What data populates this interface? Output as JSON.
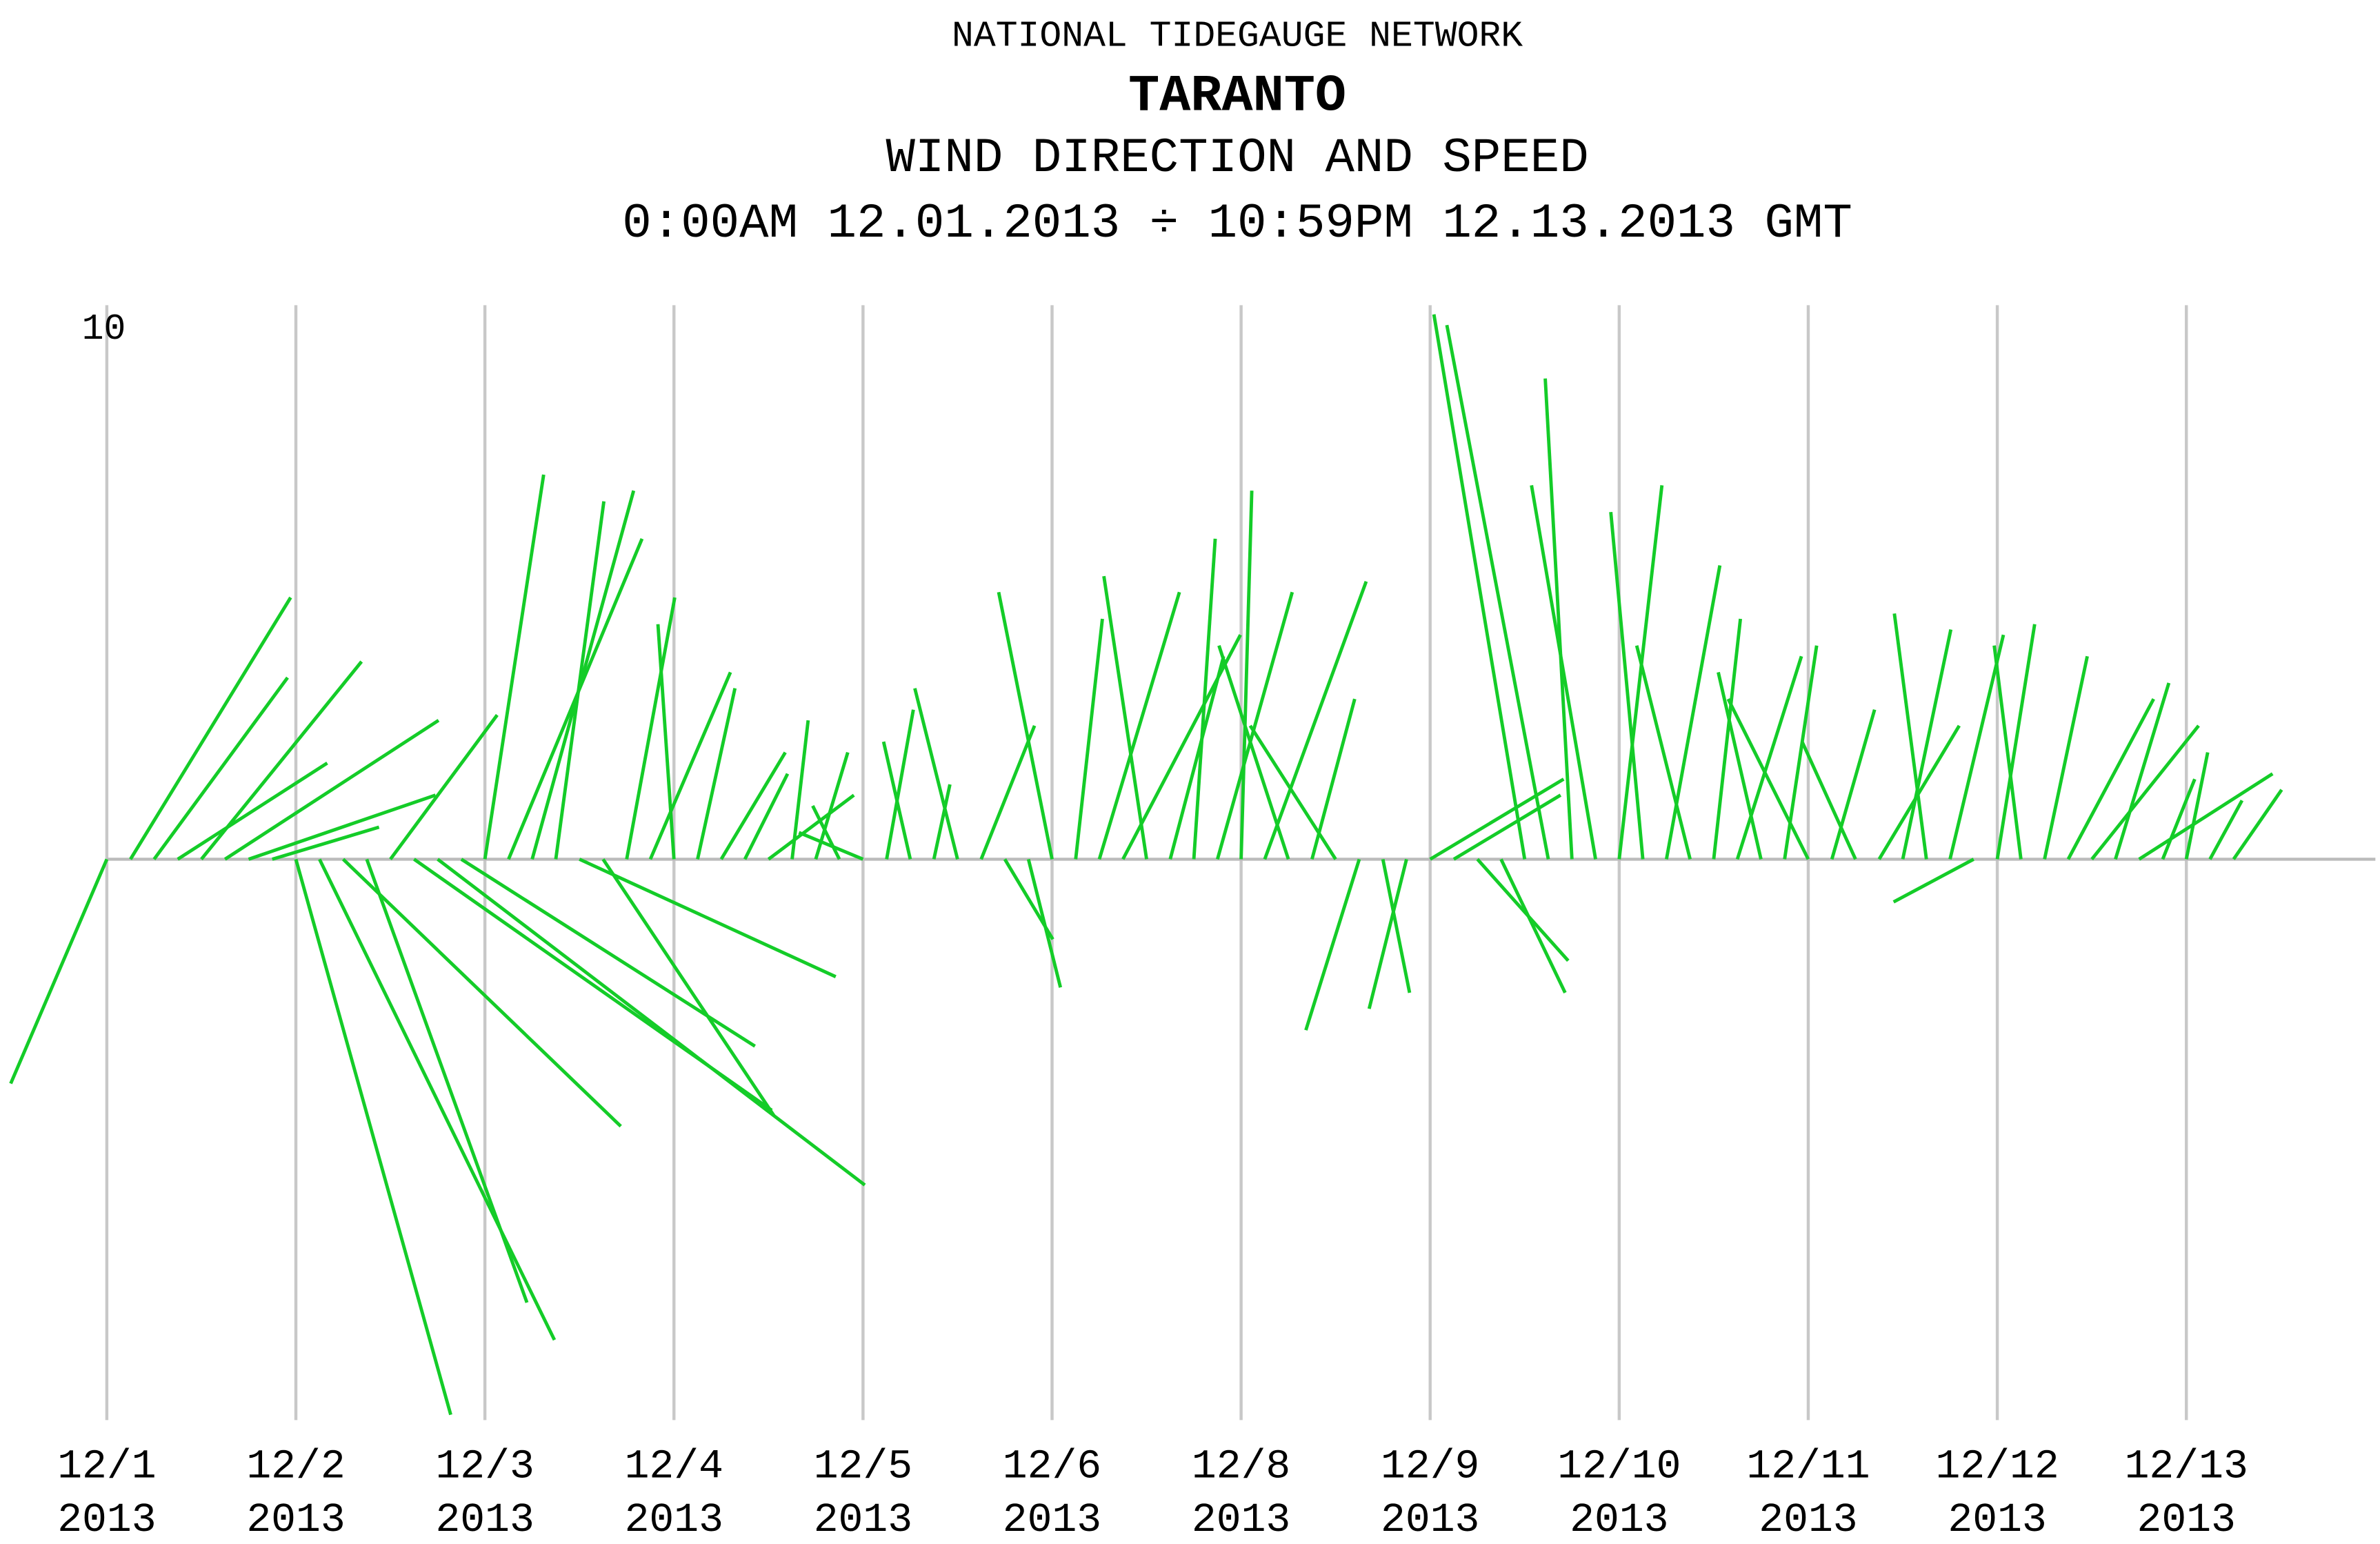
{
  "chart_data": {
    "type": "stick",
    "header": "NATIONAL TIDEGAUGE NETWORK",
    "title": "TARANTO",
    "subtitle": "WIND DIRECTION AND SPEED",
    "period": "0:00AM 12.01.2013 ÷ 10:59PM 12.13.2013 GMT",
    "xlim": [
      0,
      12
    ],
    "xticks": [
      {
        "value": 0,
        "label": "12/1\n2013"
      },
      {
        "value": 1,
        "label": "12/2\n2013"
      },
      {
        "value": 2,
        "label": "12/3\n2013"
      },
      {
        "value": 3,
        "label": "12/4\n2013"
      },
      {
        "value": 4,
        "label": "12/5\n2013"
      },
      {
        "value": 5,
        "label": "12/6\n2013"
      },
      {
        "value": 6,
        "label": "12/8\n2013"
      },
      {
        "value": 7,
        "label": "12/9\n2013"
      },
      {
        "value": 8,
        "label": "12/10\n2013"
      },
      {
        "value": 9,
        "label": "12/11\n2013"
      },
      {
        "value": 10,
        "label": "12/12\n2013"
      },
      {
        "value": 11,
        "label": "12/13\n2013"
      }
    ],
    "ylim": [
      -10.5,
      10
    ],
    "yticks": [
      10
    ],
    "grid": true,
    "x": [
      0,
      0.125,
      0.25,
      0.375,
      0.5,
      0.625,
      0.75,
      0.875,
      1,
      1.125,
      1.25,
      1.375,
      1.5,
      1.625,
      1.75,
      1.875,
      2,
      2.125,
      2.25,
      2.375,
      2.5,
      2.625,
      2.75,
      2.875,
      3,
      3.125,
      3.25,
      3.375,
      3.5,
      3.625,
      3.75,
      3.875,
      4,
      4.125,
      4.25,
      4.375,
      4.5,
      4.625,
      4.75,
      4.875,
      5,
      5.125,
      5.25,
      5.375,
      5.5,
      5.625,
      5.75,
      5.875,
      6,
      6.125,
      6.25,
      6.375,
      6.5,
      6.625,
      6.75,
      6.875,
      7,
      7.125,
      7.25,
      7.375,
      7.5,
      7.625,
      7.75,
      7.875,
      8,
      8.125,
      8.25,
      8.375,
      8.5,
      8.625,
      8.75,
      8.875,
      9,
      9.125,
      9.25,
      9.375,
      9.5,
      9.625,
      9.75,
      9.875,
      10,
      10.125,
      10.25,
      10.375,
      10.5,
      10.625,
      10.75,
      10.875,
      11,
      11.125,
      11.25
    ],
    "series": [
      {
        "color": "#14cc28",
        "u": [
          -1.8,
          3.0,
          2.5,
          2.8,
          3.0,
          4.0,
          3.5,
          2.0,
          2.9,
          4.4,
          5.2,
          3.0,
          2.0,
          6.7,
          8.0,
          5.5,
          1.1,
          2.5,
          1.9,
          0.9,
          4.8,
          3.2,
          0.9,
          1.5,
          -0.3,
          0.7,
          1.2,
          0.8,
          1.6,
          0.3,
          0.6,
          -0.5,
          -1.2,
          0.5,
          -0.5,
          0.3,
          -0.8,
          1.0,
          0.9,
          0.6,
          -1.0,
          0.5,
          1.5,
          2.2,
          -0.8,
          1.0,
          0.4,
          1.4,
          0.2,
          1.9,
          -1.3,
          0.8,
          -1.6,
          -1.0,
          0.5,
          -0.7,
          2.5,
          2.0,
          1.7,
          1.2,
          -1.7,
          -1.9,
          -0.5,
          -1.2,
          0.8,
          -0.6,
          1.0,
          -1.0,
          0.5,
          1.2,
          -0.8,
          0.6,
          -1.5,
          0.8,
          -1.0,
          1.5,
          0.9,
          -0.6,
          1.0,
          -1.5,
          0.7,
          -0.5,
          0.8,
          1.6,
          2.0,
          1.0,
          2.5,
          0.6,
          0.4,
          0.6,
          0.9
        ],
        "v": [
          -4.2,
          4.9,
          3.4,
          1.8,
          3.7,
          2.6,
          1.2,
          0.6,
          -10.4,
          -9.0,
          -5.0,
          -8.3,
          2.7,
          -4.7,
          -6.1,
          -3.5,
          7.2,
          6.0,
          6.9,
          6.7,
          -2.2,
          -4.8,
          4.9,
          3.5,
          4.4,
          3.2,
          2.0,
          1.6,
          1.2,
          2.6,
          2.0,
          1.0,
          0.5,
          2.8,
          2.2,
          1.4,
          3.2,
          2.5,
          -1.5,
          -2.4,
          5.0,
          4.5,
          5.0,
          4.2,
          5.3,
          3.8,
          6.0,
          5.0,
          6.9,
          5.2,
          4.0,
          3.0,
          2.5,
          -3.2,
          -2.5,
          -2.8,
          1.5,
          1.2,
          -1.9,
          -2.5,
          10.2,
          10.0,
          9.0,
          7.0,
          7.0,
          6.5,
          5.5,
          4.0,
          4.5,
          3.8,
          3.5,
          4.0,
          3.0,
          2.8,
          2.2,
          2.5,
          4.3,
          4.6,
          4.2,
          -0.8,
          4.4,
          4.0,
          3.8,
          3.0,
          2.5,
          3.3,
          1.6,
          1.5,
          2.0,
          1.1,
          1.3
        ]
      }
    ]
  }
}
